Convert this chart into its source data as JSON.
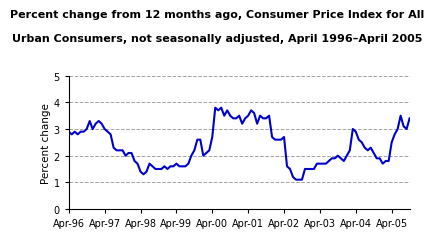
{
  "title_line1": "Percent change from 12 months ago, Consumer Price Index for All",
  "title_line2": "Urban Consumers, not seasonally adjusted, April 1996–April 2005",
  "ylabel": "Percent change",
  "ylim": [
    0,
    5
  ],
  "yticks": [
    0,
    1,
    2,
    3,
    4,
    5
  ],
  "line_color": "#0000CC",
  "line_width": 1.5,
  "background_color": "#ffffff",
  "grid_color": "#999999",
  "title_fontsize": 8.0,
  "values": [
    2.9,
    2.8,
    2.9,
    2.8,
    2.9,
    2.9,
    3.0,
    3.3,
    3.0,
    3.2,
    3.3,
    3.2,
    3.0,
    2.9,
    2.8,
    2.3,
    2.2,
    2.2,
    2.2,
    2.0,
    2.1,
    2.1,
    1.8,
    1.7,
    1.4,
    1.3,
    1.4,
    1.7,
    1.6,
    1.5,
    1.5,
    1.5,
    1.6,
    1.5,
    1.6,
    1.6,
    1.7,
    1.6,
    1.6,
    1.6,
    1.7,
    2.0,
    2.2,
    2.6,
    2.6,
    2.0,
    2.1,
    2.2,
    2.7,
    3.8,
    3.7,
    3.8,
    3.5,
    3.7,
    3.5,
    3.4,
    3.4,
    3.5,
    3.2,
    3.4,
    3.5,
    3.7,
    3.6,
    3.2,
    3.5,
    3.4,
    3.4,
    3.5,
    2.7,
    2.6,
    2.6,
    2.6,
    2.7,
    1.6,
    1.5,
    1.2,
    1.1,
    1.1,
    1.1,
    1.5,
    1.5,
    1.5,
    1.5,
    1.7,
    1.7,
    1.7,
    1.7,
    1.8,
    1.9,
    1.9,
    2.0,
    1.9,
    1.8,
    2.0,
    2.2,
    3.0,
    2.9,
    2.6,
    2.5,
    2.3,
    2.2,
    2.3,
    2.1,
    1.9,
    1.9,
    1.7,
    1.8,
    1.8,
    2.5,
    2.8,
    3.0,
    3.5,
    3.1,
    3.0,
    3.4
  ],
  "xtick_labels": [
    "Apr-96",
    "Apr-97",
    "Apr-98",
    "Apr-99",
    "Apr-00",
    "Apr-01",
    "Apr-02",
    "Apr-03",
    "Apr-04",
    "Apr-05"
  ],
  "xtick_positions": [
    0,
    12,
    24,
    36,
    48,
    60,
    72,
    84,
    96,
    108
  ]
}
